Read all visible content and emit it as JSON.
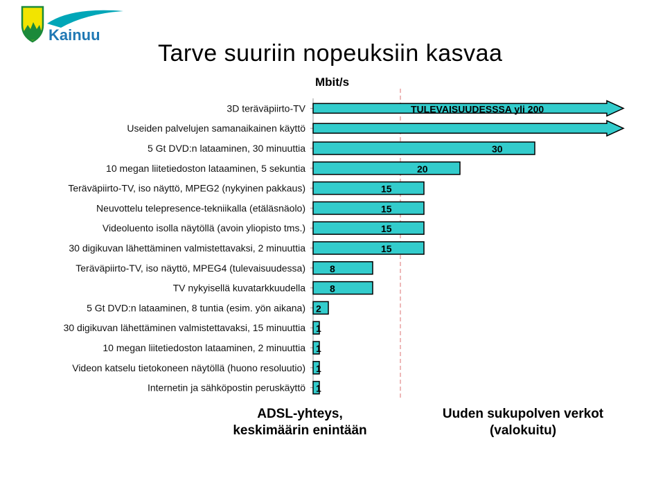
{
  "brand": {
    "logo_text": "Kainuu",
    "colors": {
      "shield_yellow": "#f2e400",
      "shield_green": "#1b8a3a",
      "wave_teal": "#00a6b8",
      "text_blue": "#1f78b4"
    }
  },
  "title": "Tarve suuriin nopeuksiin kasvaa",
  "notes": {
    "left": [
      "ADSL-yhteys,",
      "keskimäärin enintään"
    ],
    "right": [
      "Uuden sukupolven verkot",
      "(valokuitu)"
    ]
  },
  "chart_data": {
    "type": "bar",
    "orientation": "horizontal",
    "unit_label": "Mbit/s",
    "bar_color": "#33cccc",
    "bar_edge_color": "#000000",
    "categories": [
      "3D teräväpiirto-TV",
      "Useiden palvelujen samanaikainen käyttö",
      "5 Gt DVD:n lataaminen, 30 minuuttia",
      "10 megan liitetiedoston lataaminen, 5 sekuntia",
      "Teräväpiirto-TV, iso näyttö, MPEG2 (nykyinen pakkaus)",
      "Neuvottelu telepresence-tekniikalla (etäläsnäolo)",
      "Videoluento isolla näytöllä (avoin yliopisto tms.)",
      "30 digikuvan lähettäminen valmistettavaksi, 2 minuuttia",
      "Teräväpiirto-TV, iso näyttö, MPEG4 (tulevaisuudessa)",
      "TV nykyisellä kuvatarkkuudella",
      "5 Gt DVD:n lataaminen, 8 tuntia (esim. yön aikana)",
      "30 digikuvan lähettäminen valmistettavaksi, 15 minuuttia",
      "10 megan liitetiedoston lataaminen, 2 minuuttia",
      "Videon katselu tietokoneen näytöllä (huono resoluutio)",
      "Internetin ja sähköpostin peruskäyttö"
    ],
    "values": [
      200,
      200,
      30,
      20,
      15,
      15,
      15,
      15,
      8,
      8,
      2,
      1,
      1,
      1,
      1
    ],
    "value_labels": [
      "",
      "",
      "30",
      "20",
      "15",
      "15",
      "15",
      "15",
      "8",
      "8",
      "2",
      "1",
      "1",
      "1",
      "1"
    ],
    "arrow_bars": [
      true,
      true,
      false,
      false,
      false,
      false,
      false,
      false,
      false,
      false,
      false,
      false,
      false,
      false,
      false
    ],
    "annotations": [
      {
        "text": "TULEVAISUUDESSSA yli 200"
      }
    ],
    "reference_line": {
      "style": "dashed",
      "color": "#e8a0a0",
      "value": 20
    },
    "scale": "nonlinear"
  }
}
